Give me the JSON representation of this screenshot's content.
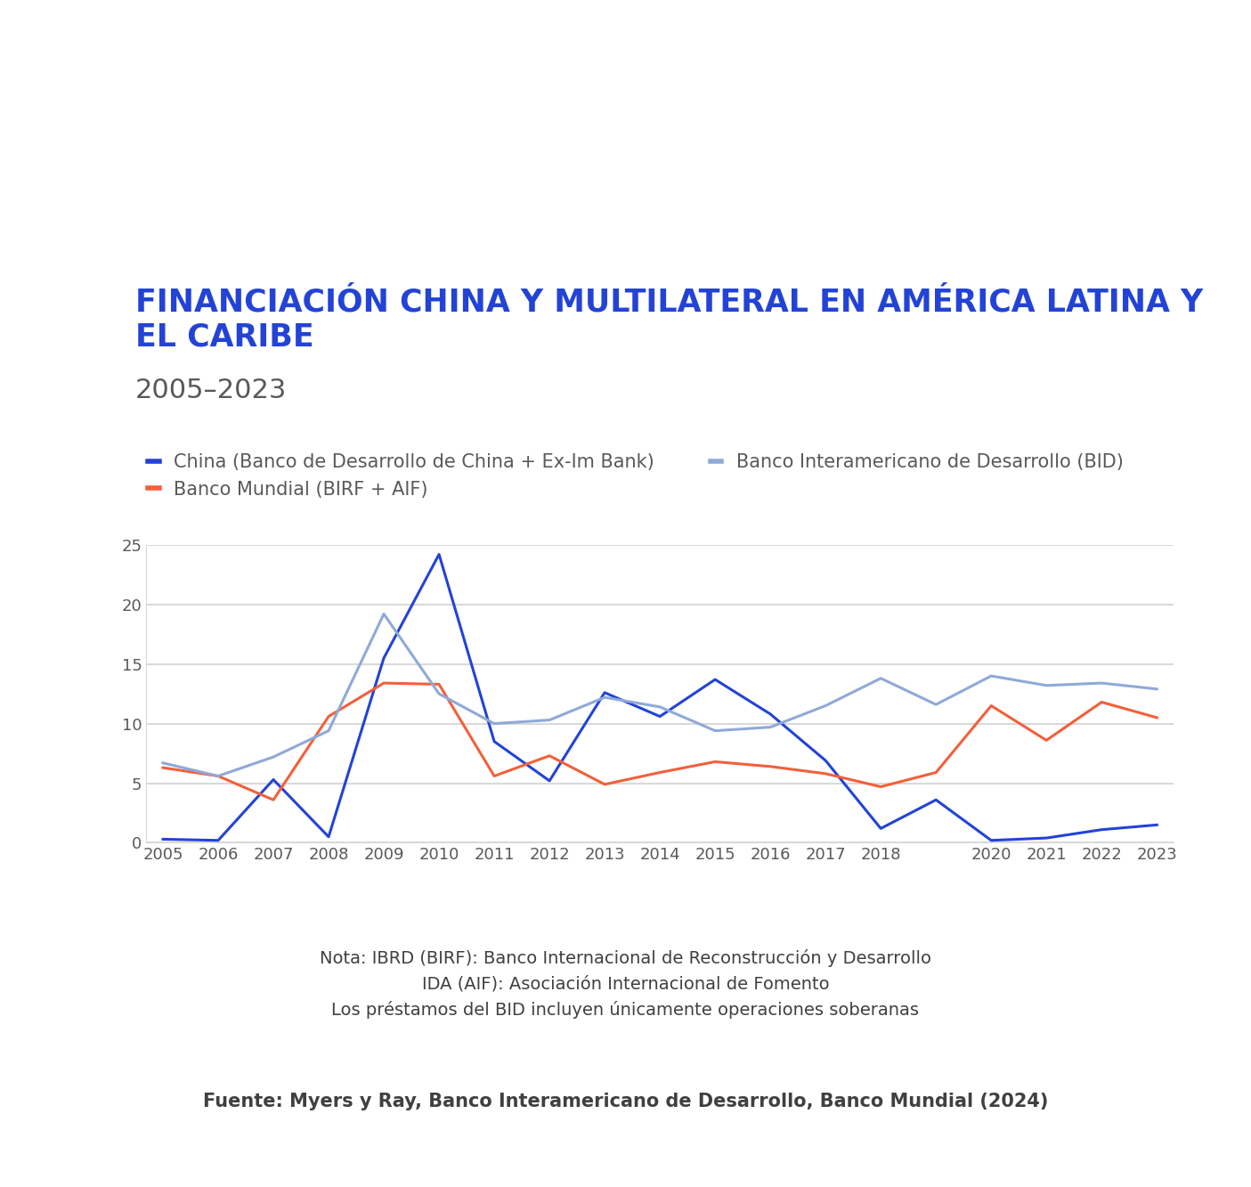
{
  "chart_data": {
    "type": "line",
    "title": "FINANCIACIÓN CHINA Y MULTILATERAL EN AMÉRICA LATINA Y EL CARIBE",
    "subtitle": "2005–2023",
    "categories": [
      "2005",
      "2006",
      "2007",
      "2008",
      "2009",
      "2010",
      "2011",
      "2012",
      "2013",
      "2014",
      "2015",
      "2016",
      "2017",
      "2018",
      null,
      "2020",
      "2021",
      "2022",
      "2023"
    ],
    "series": [
      {
        "name": "China (Banco de Desarrollo de China + Ex-Im Bank)",
        "color": "#2343d6",
        "values": [
          0.3,
          0.2,
          5.3,
          0.5,
          15.5,
          24.2,
          8.5,
          5.2,
          12.6,
          10.6,
          13.7,
          10.8,
          6.9,
          1.2,
          3.6,
          0.2,
          0.4,
          1.1,
          1.5
        ]
      },
      {
        "name": "Banco Mundial (BIRF + AIF)",
        "color": "#f2603a",
        "values": [
          6.3,
          5.6,
          3.6,
          10.6,
          13.4,
          13.3,
          5.6,
          7.3,
          4.9,
          5.9,
          6.8,
          6.4,
          5.8,
          4.7,
          5.9,
          11.5,
          8.6,
          11.8,
          10.5
        ]
      },
      {
        "name": "Banco Interamericano de Desarrollo (BID)",
        "color": "#8fa9d8",
        "values": [
          6.7,
          5.6,
          7.2,
          9.4,
          19.2,
          12.5,
          10.0,
          10.3,
          12.2,
          11.4,
          9.4,
          9.7,
          11.5,
          13.8,
          11.6,
          14.0,
          13.2,
          13.4,
          12.9
        ]
      }
    ],
    "ylim": [
      0,
      25
    ],
    "yticks": [
      0,
      5,
      10,
      15,
      20,
      25
    ],
    "grid": true,
    "legend": "upper left",
    "notes": [
      "Nota: IBRD (BIRF): Banco Internacional de Reconstrucción y Desarrollo",
      "IDA (AIF): Asociación Internacional de Fomento",
      "Los préstamos del BID incluyen únicamente operaciones soberanas"
    ],
    "source": "Fuente: Myers y Ray, Banco Interamericano de Desarrollo, Banco Mundial (2024)"
  }
}
